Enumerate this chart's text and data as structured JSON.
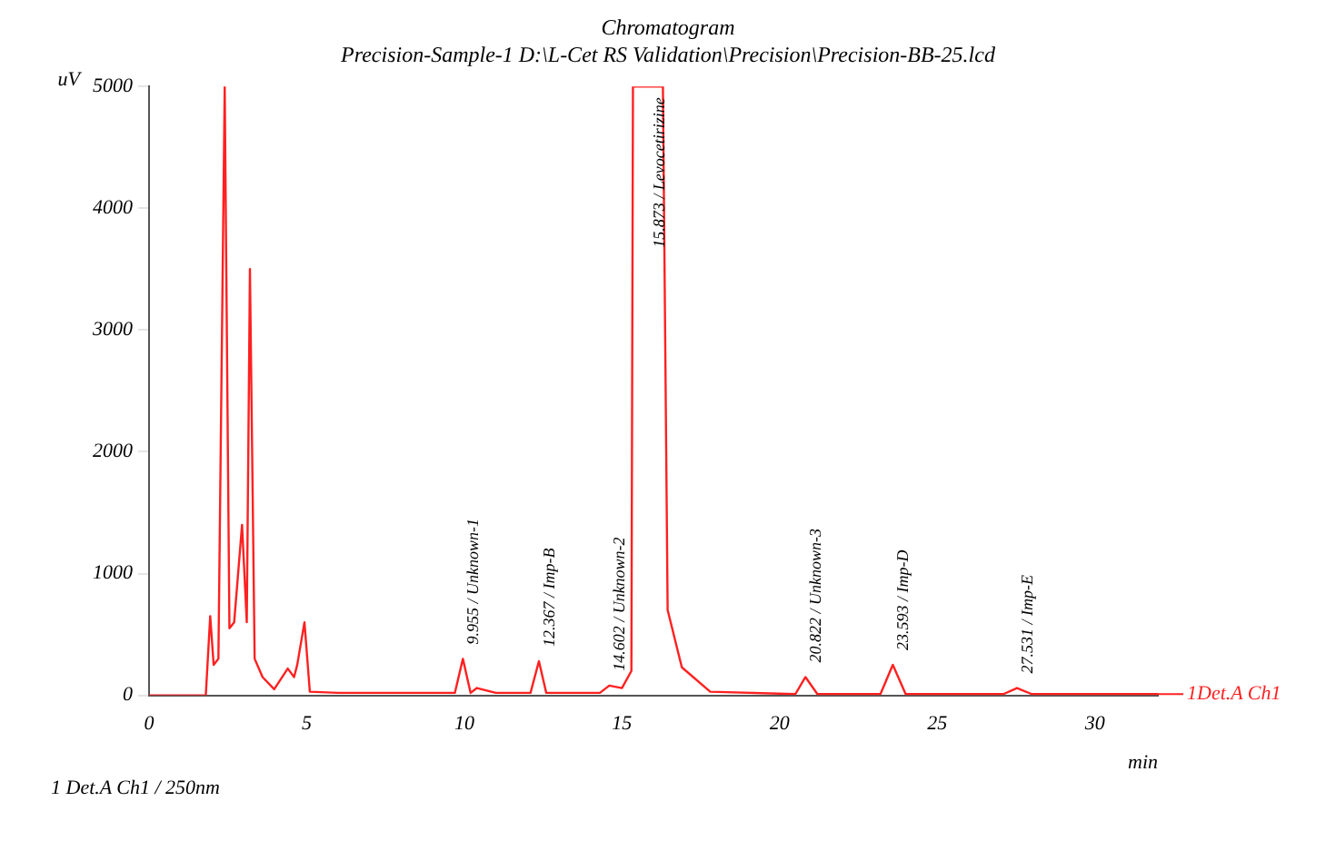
{
  "chart_data": {
    "type": "line",
    "title": "Chromatogram",
    "subtitle": "Precision-Sample-1 D:\\L-Cet RS Validation\\Precision\\Precision-BB-25.lcd",
    "xlabel": "min",
    "ylabel": "uV",
    "x": [
      0,
      1.8,
      1.94,
      2.05,
      2.2,
      2.4,
      2.55,
      2.7,
      2.95,
      3.1,
      3.2,
      3.35,
      3.6,
      3.97,
      4.4,
      4.6,
      4.7,
      4.93,
      5.1,
      6,
      8,
      9.7,
      9.955,
      10.2,
      10.4,
      11,
      12.1,
      12.367,
      12.6,
      14.3,
      14.6,
      15.0,
      15.3,
      15.35,
      15.873,
      16.3,
      16.45,
      16.9,
      17.8,
      20.5,
      20.822,
      21.2,
      23.2,
      23.593,
      24.0,
      27.1,
      27.531,
      28.0,
      32
    ],
    "series": [
      {
        "name": "1Det.A Ch1",
        "color": "#ff2020",
        "values": [
          0,
          0,
          650,
          250,
          300,
          5000,
          550,
          600,
          1400,
          600,
          3500,
          300,
          150,
          50,
          220,
          150,
          250,
          600,
          30,
          20,
          20,
          20,
          300,
          20,
          60,
          20,
          20,
          280,
          20,
          20,
          80,
          60,
          200,
          5000,
          5000,
          5000,
          700,
          230,
          30,
          10,
          150,
          10,
          10,
          250,
          10,
          10,
          60,
          10,
          10
        ]
      }
    ],
    "xlim": [
      0,
      32
    ],
    "ylim": [
      0,
      5000
    ],
    "xticks": [
      0,
      5,
      10,
      15,
      20,
      25,
      30
    ],
    "yticks": [
      0,
      1000,
      2000,
      3000,
      4000,
      5000
    ],
    "grid": false,
    "legend": "right",
    "marker": "none",
    "line_style": "solid",
    "annotations": [
      {
        "text": "9.955 / Unknown-1",
        "x": 9.955,
        "y": 300
      },
      {
        "text": "12.367 / Imp-B",
        "x": 12.367,
        "y": 280
      },
      {
        "text": "14.602 / Unknown-2",
        "x": 14.602,
        "y": 80
      },
      {
        "text": "15.873 / Levocetirizine",
        "x": 15.873,
        "y": 5000
      },
      {
        "text": "20.822 / Unknown-3",
        "x": 20.822,
        "y": 150
      },
      {
        "text": "23.593 / Imp-D",
        "x": 23.593,
        "y": 250
      },
      {
        "text": "27.531 / Imp-E",
        "x": 27.531,
        "y": 60
      },
      "1  Det.A Ch1 / 250nm"
    ]
  }
}
